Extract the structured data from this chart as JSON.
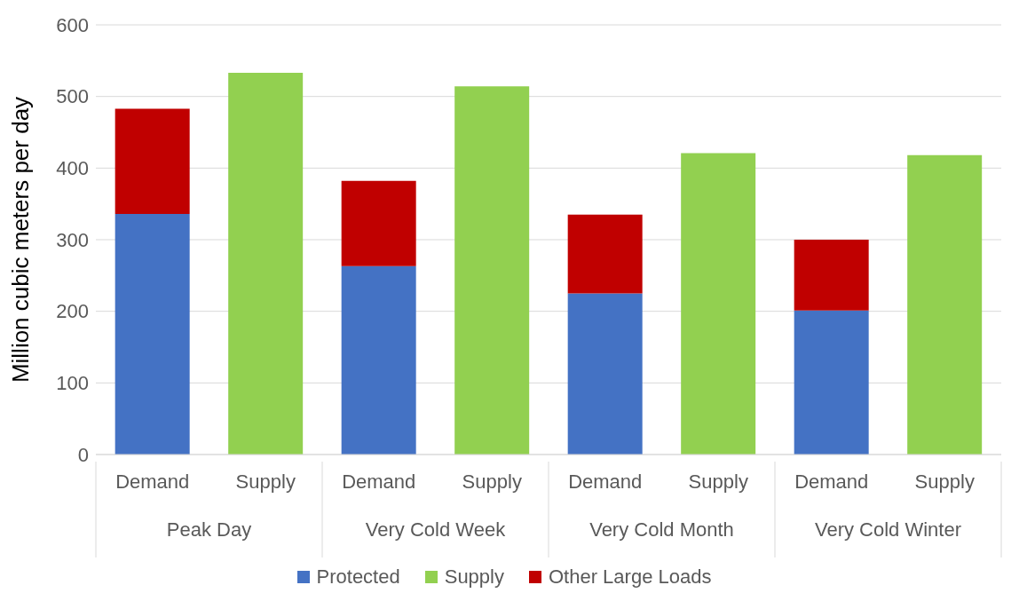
{
  "chart_data": {
    "type": "bar",
    "ylabel": "Million cubic meters per day",
    "stacked": true,
    "categories": [
      "Demand",
      "Supply",
      "Demand",
      "Supply",
      "Demand",
      "Supply",
      "Demand",
      "Supply"
    ],
    "annotations": [
      "Peak Day",
      "Very Cold Week",
      "Very Cold Month",
      "Very Cold Winter"
    ],
    "series": [
      {
        "name": "Protected",
        "color": "#4472c4",
        "values": [
          336,
          null,
          263,
          null,
          225,
          null,
          201,
          null
        ]
      },
      {
        "name": "Supply",
        "color": "#92d050",
        "values": [
          null,
          533,
          null,
          514,
          null,
          421,
          null,
          418
        ]
      },
      {
        "name": "Other Large Loads",
        "color": "#c00000",
        "values": [
          147,
          null,
          119,
          null,
          110,
          null,
          99,
          null
        ]
      }
    ],
    "ylim": [
      0,
      600
    ],
    "yticks": [
      0,
      100,
      200,
      300,
      400,
      500,
      600
    ],
    "grid": "y",
    "legend": "bottom"
  }
}
